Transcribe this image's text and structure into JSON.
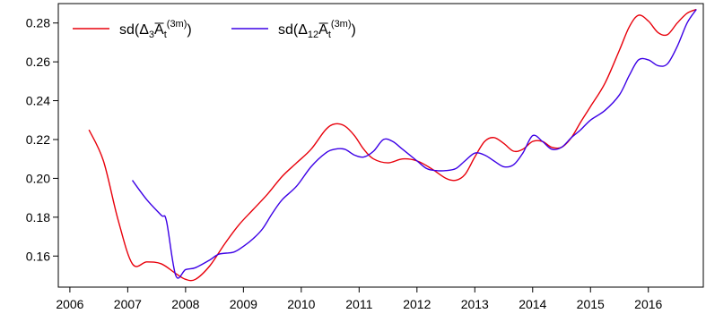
{
  "chart_data": {
    "type": "line",
    "title": "",
    "xlabel": "",
    "ylabel": "",
    "xlim": [
      2005.8,
      2016.95
    ],
    "ylim": [
      0.144,
      0.29
    ],
    "x_ticks": [
      2006,
      2007,
      2008,
      2009,
      2010,
      2011,
      2012,
      2013,
      2014,
      2015,
      2016
    ],
    "y_ticks": [
      0.16,
      0.18,
      0.2,
      0.22,
      0.24,
      0.26,
      0.28
    ],
    "y_tick_labels": [
      "0.16",
      "0.18",
      "0.20",
      "0.22",
      "0.24",
      "0.26",
      "0.28"
    ],
    "legend_position": "top-left",
    "grid": false,
    "series": [
      {
        "legend": {
          "prefix": "sd(Δ",
          "sub": "3",
          "A": "A",
          "t": "t",
          "sup": "(3m)",
          "close": ")"
        },
        "color": "#e8000b",
        "x": [
          2006.33,
          2006.58,
          2006.83,
          2007.08,
          2007.33,
          2007.58,
          2007.83,
          2008.0,
          2008.17,
          2008.42,
          2008.67,
          2008.92,
          2009.17,
          2009.42,
          2009.67,
          2009.92,
          2010.17,
          2010.42,
          2010.58,
          2010.75,
          2010.92,
          2011.08,
          2011.25,
          2011.5,
          2011.75,
          2012.0,
          2012.25,
          2012.5,
          2012.67,
          2012.83,
          2013.0,
          2013.17,
          2013.33,
          2013.5,
          2013.67,
          2013.83,
          2014.0,
          2014.17,
          2014.33,
          2014.5,
          2014.67,
          2014.83,
          2015.0,
          2015.25,
          2015.5,
          2015.67,
          2015.83,
          2016.0,
          2016.17,
          2016.33,
          2016.5,
          2016.67,
          2016.83
        ],
        "values": [
          0.225,
          0.209,
          0.179,
          0.156,
          0.157,
          0.156,
          0.151,
          0.148,
          0.148,
          0.155,
          0.166,
          0.176,
          0.184,
          0.192,
          0.201,
          0.208,
          0.215,
          0.225,
          0.228,
          0.227,
          0.222,
          0.215,
          0.21,
          0.208,
          0.21,
          0.209,
          0.205,
          0.2,
          0.199,
          0.202,
          0.211,
          0.219,
          0.221,
          0.218,
          0.214,
          0.215,
          0.219,
          0.219,
          0.216,
          0.216,
          0.221,
          0.229,
          0.237,
          0.249,
          0.266,
          0.278,
          0.284,
          0.281,
          0.275,
          0.274,
          0.28,
          0.285,
          0.287
        ]
      },
      {
        "legend": {
          "prefix": "sd(Δ",
          "sub": "12",
          "A": "A",
          "t": "t",
          "sup": "(3m)",
          "close": ")"
        },
        "color": "#3c00e6",
        "x": [
          2007.08,
          2007.33,
          2007.58,
          2007.67,
          2007.83,
          2008.0,
          2008.17,
          2008.42,
          2008.58,
          2008.83,
          2009.0,
          2009.17,
          2009.33,
          2009.5,
          2009.67,
          2009.92,
          2010.17,
          2010.42,
          2010.58,
          2010.75,
          2010.92,
          2011.08,
          2011.25,
          2011.42,
          2011.58,
          2011.75,
          2012.0,
          2012.17,
          2012.33,
          2012.5,
          2012.67,
          2012.83,
          2013.0,
          2013.17,
          2013.33,
          2013.5,
          2013.67,
          2013.83,
          2014.0,
          2014.17,
          2014.33,
          2014.5,
          2014.67,
          2014.83,
          2015.0,
          2015.25,
          2015.5,
          2015.67,
          2015.83,
          2016.0,
          2016.17,
          2016.33,
          2016.5,
          2016.67,
          2016.83
        ],
        "values": [
          0.199,
          0.189,
          0.181,
          0.178,
          0.15,
          0.153,
          0.154,
          0.158,
          0.161,
          0.162,
          0.165,
          0.169,
          0.174,
          0.182,
          0.189,
          0.196,
          0.206,
          0.213,
          0.215,
          0.215,
          0.212,
          0.211,
          0.214,
          0.22,
          0.219,
          0.215,
          0.209,
          0.205,
          0.204,
          0.204,
          0.205,
          0.209,
          0.213,
          0.212,
          0.209,
          0.206,
          0.207,
          0.213,
          0.222,
          0.219,
          0.215,
          0.216,
          0.221,
          0.225,
          0.23,
          0.235,
          0.243,
          0.253,
          0.261,
          0.261,
          0.258,
          0.259,
          0.268,
          0.28,
          0.287
        ]
      }
    ]
  }
}
